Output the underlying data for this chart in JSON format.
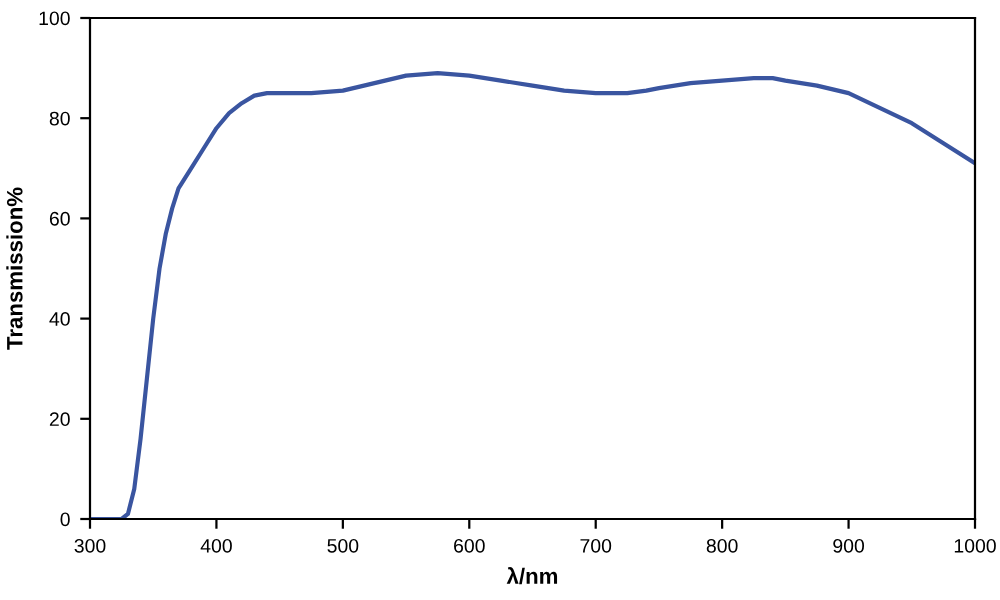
{
  "chart_data": {
    "type": "line",
    "xlabel": "λ/nm",
    "ylabel": "Transmission%",
    "series": [
      {
        "color": "#3a55a0",
        "x": [
          300,
          320,
          325,
          330,
          335,
          340,
          345,
          350,
          355,
          360,
          365,
          370,
          375,
          380,
          390,
          400,
          410,
          420,
          430,
          440,
          450,
          475,
          500,
          525,
          550,
          575,
          600,
          625,
          650,
          675,
          700,
          715,
          725,
          740,
          750,
          775,
          800,
          825,
          840,
          850,
          875,
          900,
          925,
          950,
          975,
          1000
        ],
        "values": [
          0,
          0,
          0,
          1,
          6,
          16,
          28,
          40,
          50,
          57,
          62,
          66,
          68,
          70,
          74,
          78,
          81,
          83,
          84.5,
          85,
          85,
          85,
          85.5,
          87,
          88.5,
          89,
          88.5,
          87.5,
          86.5,
          85.5,
          85,
          85,
          85,
          85.5,
          86,
          87,
          87.5,
          88,
          88,
          87.5,
          86.5,
          85,
          82,
          79,
          75,
          71
        ]
      }
    ],
    "xlim": [
      300,
      1000
    ],
    "ylim": [
      0,
      100
    ],
    "xticks": [
      300,
      400,
      500,
      600,
      700,
      800,
      900,
      1000
    ],
    "yticks": [
      0,
      20,
      40,
      60,
      80,
      100
    ],
    "grid": false,
    "line_style": "solid",
    "marker": "none"
  }
}
